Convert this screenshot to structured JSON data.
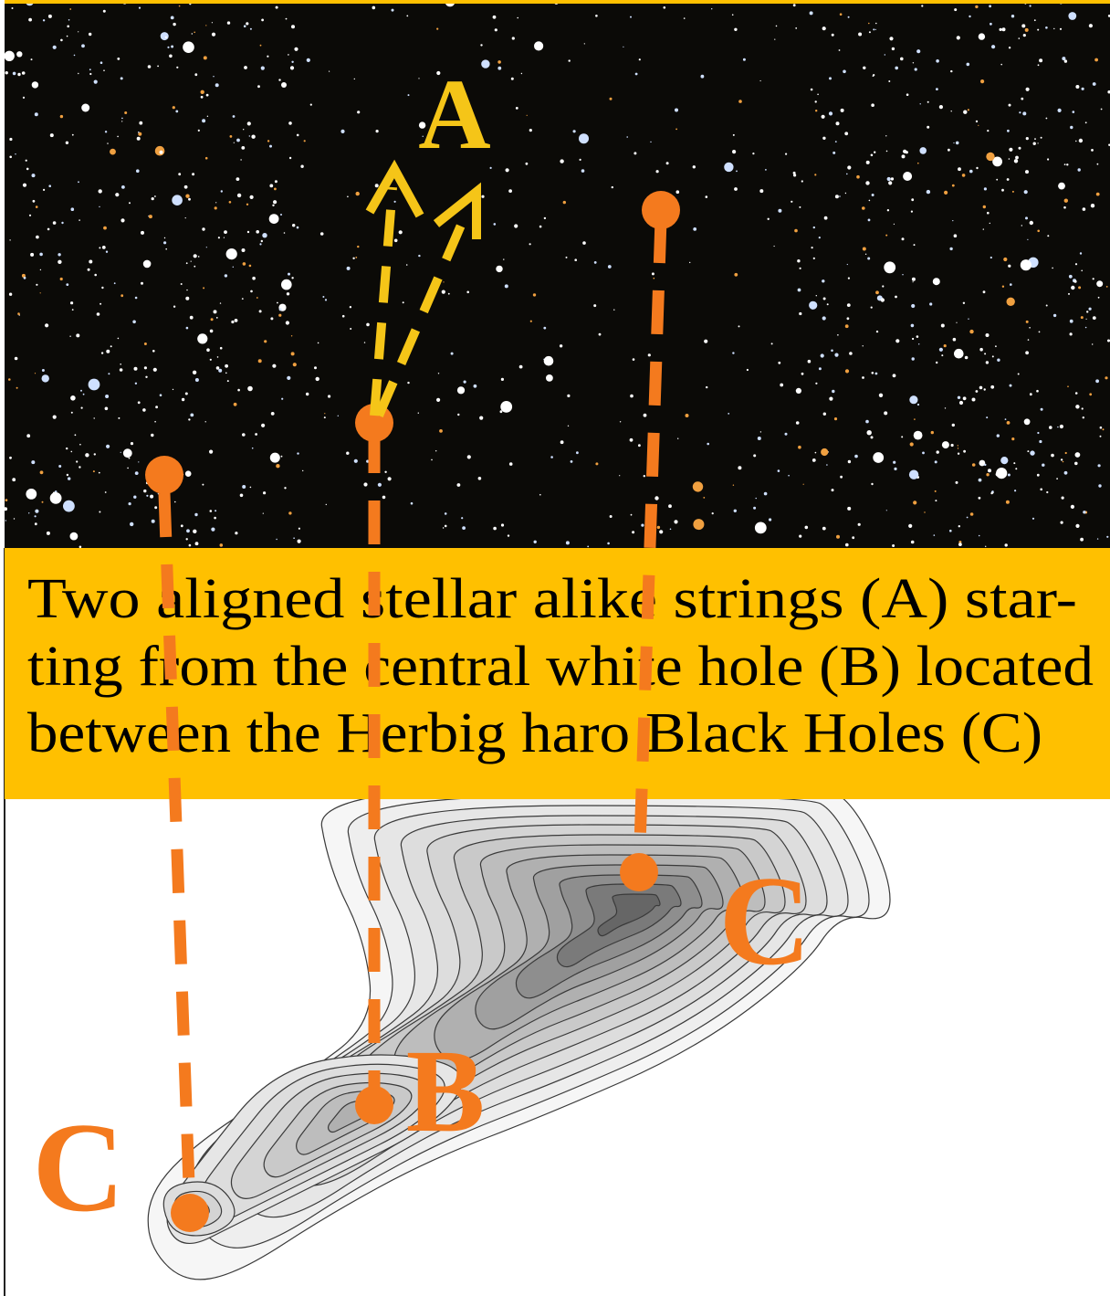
{
  "caption": {
    "lines": [
      "Two aligned stellar alike strings (A) star-",
      "ting from the central white hole (B) located",
      "between the Herbig haro Black Holes (C)"
    ]
  },
  "labels": {
    "strings": "A",
    "white_hole": "B",
    "black_hole_right": "C",
    "black_hole_left": "C"
  }
}
